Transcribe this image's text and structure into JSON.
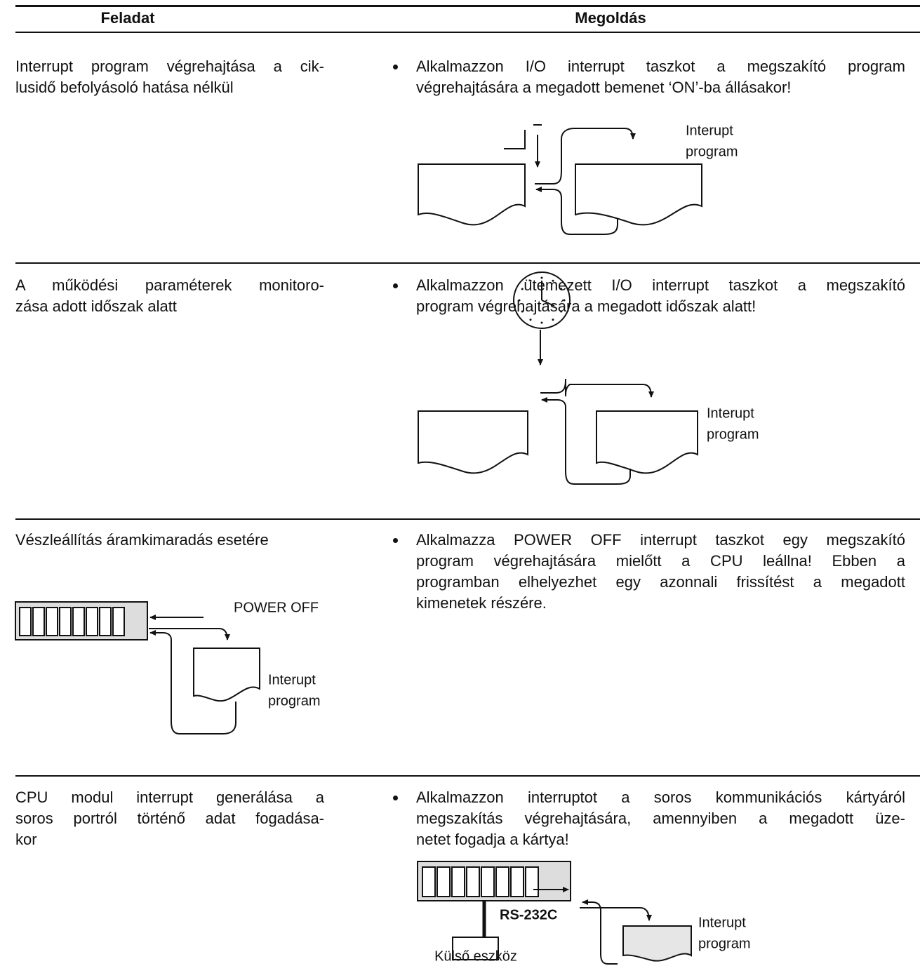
{
  "header": {
    "task": "Feladat",
    "solution": "Megoldás"
  },
  "rows": [
    {
      "task": [
        "Interrupt program végrehajtása a cik-",
        "lusidő befolyásoló hatása nélkül"
      ],
      "solution": [
        "Alkalmazzon I/O interrupt taszkot a megszakító program",
        "végrehajtására a megadott bemenet ‘ON’-ba állásakor!"
      ],
      "diagram": {
        "program": [
          "Interupt",
          "program"
        ]
      }
    },
    {
      "task": [
        "A működési paraméterek monitoro-",
        "zása adott időszak alatt"
      ],
      "solution": [
        "Alkalmazzon ütemezett I/O interrupt taszkot a megszakító",
        "program végrehajtására a megadott időszak alatt!"
      ],
      "diagram": {
        "program": [
          "Interupt",
          "program"
        ]
      }
    },
    {
      "task": [
        "Vészleállítás áramkimaradás esetére"
      ],
      "solution": [
        "Alkalmazza POWER OFF interrupt taszkot egy megszakító",
        "program végrehajtására mielőtt a CPU leállna! Ebben a",
        "programban elhelyezhet egy azonnali frissítést a megadott",
        "kimenetek részére."
      ],
      "diagram": {
        "signal": "POWER OFF",
        "program": [
          "Interupt",
          "program"
        ]
      }
    },
    {
      "task": [
        "CPU modul interrupt generálása a",
        "soros portról történő adat fogadása-",
        "kor"
      ],
      "solution": [
        "Alkalmazzon interruptot a soros kommunikációs kártyáról",
        "megszakítás végrehajtására, amennyiben a megadott üze-",
        "netet fogadja a kártya!"
      ],
      "diagram": {
        "port": "RS-232C",
        "device": "Külső eszköz",
        "program": [
          "Interupt",
          "program"
        ]
      }
    }
  ]
}
